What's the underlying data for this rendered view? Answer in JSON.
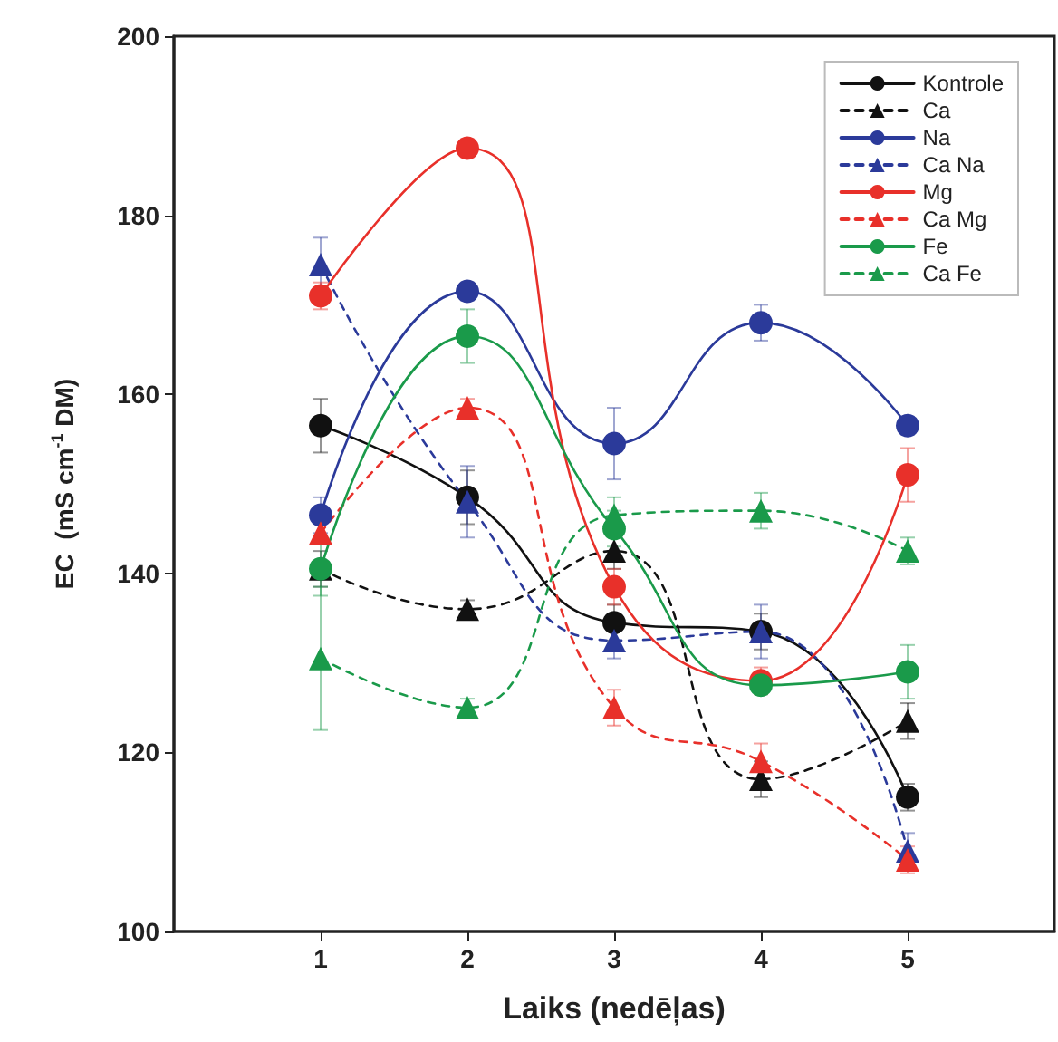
{
  "chart_data": {
    "type": "line",
    "xlabel": "Laiks (nedēļas)",
    "ylabel": "EC  (mS cm$^{-1}$ DM)",
    "x": [
      1,
      2,
      3,
      4,
      5
    ],
    "xlim": [
      0,
      6
    ],
    "xticks": [
      1,
      2,
      3,
      4,
      5
    ],
    "ylim": [
      100,
      200
    ],
    "yticks": [
      100,
      120,
      140,
      160,
      180,
      200
    ],
    "grid": false,
    "legend": "top right",
    "series": [
      {
        "name": "Kontrole",
        "color": "#111111",
        "marker": "circle",
        "line_style": "solid",
        "values": [
          156.5,
          148.5,
          134.5,
          133.5,
          115
        ],
        "errors": [
          3,
          3,
          2,
          2,
          1.5
        ]
      },
      {
        "name": "Ca",
        "color": "#111111",
        "marker": "triangle",
        "line_style": "dashed",
        "values": [
          140.5,
          136,
          142.5,
          117,
          123.5
        ],
        "errors": [
          2,
          1,
          2,
          2,
          2
        ]
      },
      {
        "name": "Na",
        "color": "#2b3a9a",
        "marker": "circle",
        "line_style": "solid",
        "values": [
          146.5,
          171.5,
          154.5,
          168,
          156.5
        ],
        "errors": [
          2,
          1,
          4,
          2,
          1
        ]
      },
      {
        "name": "Ca Na",
        "color": "#2b3a9a",
        "marker": "triangle",
        "line_style": "dashed",
        "values": [
          174.5,
          148,
          132.5,
          133.5,
          109
        ],
        "errors": [
          3,
          4,
          2,
          3,
          2
        ]
      },
      {
        "name": "Mg",
        "color": "#e8302a",
        "marker": "circle",
        "line_style": "solid",
        "values": [
          171,
          187.5,
          138.5,
          128,
          151
        ],
        "errors": [
          1.5,
          1,
          2,
          1.5,
          3
        ]
      },
      {
        "name": "Ca Mg",
        "color": "#e8302a",
        "marker": "triangle",
        "line_style": "dashed",
        "values": [
          144.5,
          158.5,
          125,
          119,
          108
        ],
        "errors": [
          null,
          1,
          2,
          2,
          1.5
        ]
      },
      {
        "name": "Fe",
        "color": "#1a9a4a",
        "marker": "circle",
        "line_style": "solid",
        "values": [
          140.5,
          166.5,
          145,
          127.5,
          129
        ],
        "errors": [
          3,
          3,
          2,
          1,
          3
        ]
      },
      {
        "name": "Ca Fe",
        "color": "#1a9a4a",
        "marker": "triangle",
        "line_style": "dashed",
        "values": [
          130.5,
          125,
          146.5,
          147,
          142.5
        ],
        "errors": [
          8,
          1,
          2,
          2,
          1.5
        ]
      }
    ]
  }
}
